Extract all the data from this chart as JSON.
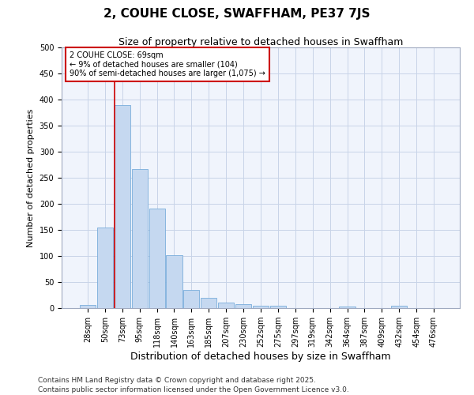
{
  "title": "2, COUHE CLOSE, SWAFFHAM, PE37 7JS",
  "subtitle": "Size of property relative to detached houses in Swaffham",
  "xlabel": "Distribution of detached houses by size in Swaffham",
  "ylabel": "Number of detached properties",
  "categories": [
    "28sqm",
    "50sqm",
    "73sqm",
    "95sqm",
    "118sqm",
    "140sqm",
    "163sqm",
    "185sqm",
    "207sqm",
    "230sqm",
    "252sqm",
    "275sqm",
    "297sqm",
    "319sqm",
    "342sqm",
    "364sqm",
    "387sqm",
    "409sqm",
    "432sqm",
    "454sqm",
    "476sqm"
  ],
  "values": [
    6,
    155,
    390,
    267,
    191,
    102,
    35,
    20,
    10,
    8,
    5,
    4,
    0,
    0,
    0,
    3,
    0,
    0,
    5,
    0,
    0
  ],
  "bar_color": "#c5d8f0",
  "bar_edge_color": "#7aaddb",
  "grid_color": "#c8d4e8",
  "bg_color": "#eef2fb",
  "plot_bg_color": "#f0f4fc",
  "vline_color": "#cc0000",
  "annotation_text": "2 COUHE CLOSE: 69sqm\n← 9% of detached houses are smaller (104)\n90% of semi-detached houses are larger (1,075) →",
  "annotation_box_color": "#cc0000",
  "ylim": [
    0,
    500
  ],
  "yticks": [
    0,
    50,
    100,
    150,
    200,
    250,
    300,
    350,
    400,
    450,
    500
  ],
  "footer": "Contains HM Land Registry data © Crown copyright and database right 2025.\nContains public sector information licensed under the Open Government Licence v3.0.",
  "title_fontsize": 11,
  "subtitle_fontsize": 9,
  "axis_label_fontsize": 8,
  "tick_fontsize": 7,
  "annotation_fontsize": 7,
  "footer_fontsize": 6.5
}
